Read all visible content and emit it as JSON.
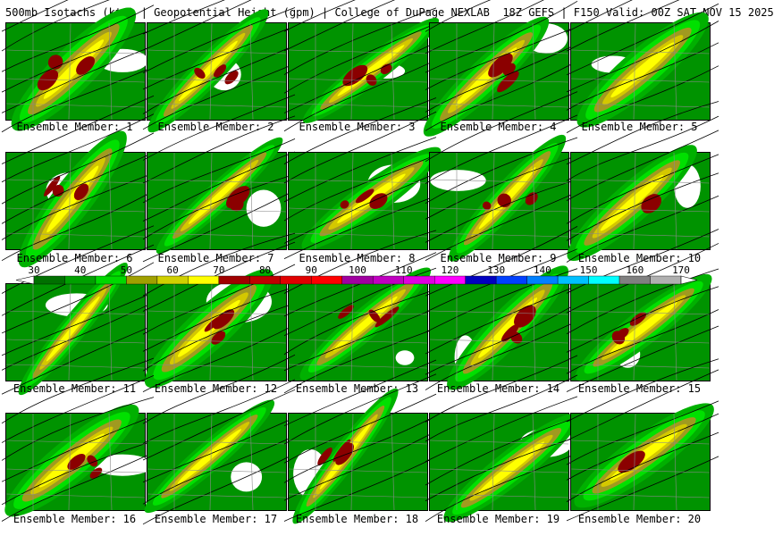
{
  "header": {
    "left": "500mb Isotachs (kts) | Geopotential Height (gpm) | College of DuPage NEXLAB",
    "right": "18Z GEFS | F150 Valid: 00Z SAT NOV 15 2025"
  },
  "colorbar": {
    "ticks": [
      "30",
      "40",
      "50",
      "60",
      "70",
      "80",
      "90",
      "100",
      "110",
      "120",
      "130",
      "140",
      "150",
      "160",
      "170"
    ],
    "colors": [
      "#007000",
      "#00a000",
      "#00d800",
      "#a0a000",
      "#d0d000",
      "#ffff00",
      "#a00000",
      "#c00000",
      "#e00000",
      "#ff0000",
      "#a000a0",
      "#c000c0",
      "#e000e0",
      "#ff00ff",
      "#0000c0",
      "#0040ff",
      "#0080ff",
      "#00c0ff",
      "#00ffff",
      "#808080",
      "#b0b0b0"
    ]
  },
  "isotach_colors": {
    "kt30": "#007000",
    "kt40": "#00b000",
    "kt50": "#00e000",
    "kt60": "#a09a20",
    "kt70": "#d4c800",
    "kt75": "#ffff00",
    "kt80": "#8b0000"
  },
  "members": [
    {
      "label": "Ensemble Member: 1",
      "max_kt": 80
    },
    {
      "label": "Ensemble Member: 2",
      "max_kt": 80
    },
    {
      "label": "Ensemble Member: 3",
      "max_kt": 80
    },
    {
      "label": "Ensemble Member: 4",
      "max_kt": 80
    },
    {
      "label": "Ensemble Member: 5",
      "max_kt": 75
    },
    {
      "label": "Ensemble Member: 6",
      "max_kt": 80
    },
    {
      "label": "Ensemble Member: 7",
      "max_kt": 80
    },
    {
      "label": "Ensemble Member: 8",
      "max_kt": 80
    },
    {
      "label": "Ensemble Member: 9",
      "max_kt": 80
    },
    {
      "label": "Ensemble Member: 10",
      "max_kt": 80
    },
    {
      "label": "Ensemble Member: 11",
      "max_kt": 75
    },
    {
      "label": "Ensemble Member: 12",
      "max_kt": 80
    },
    {
      "label": "Ensemble Member: 13",
      "max_kt": 80
    },
    {
      "label": "Ensemble Member: 14",
      "max_kt": 80
    },
    {
      "label": "Ensemble Member: 15",
      "max_kt": 80
    },
    {
      "label": "Ensemble Member: 16",
      "max_kt": 80
    },
    {
      "label": "Ensemble Member: 17",
      "max_kt": 75
    },
    {
      "label": "Ensemble Member: 18",
      "max_kt": 80
    },
    {
      "label": "Ensemble Member: 19",
      "max_kt": 70
    },
    {
      "label": "Ensemble Member: 20",
      "max_kt": 80
    }
  ]
}
